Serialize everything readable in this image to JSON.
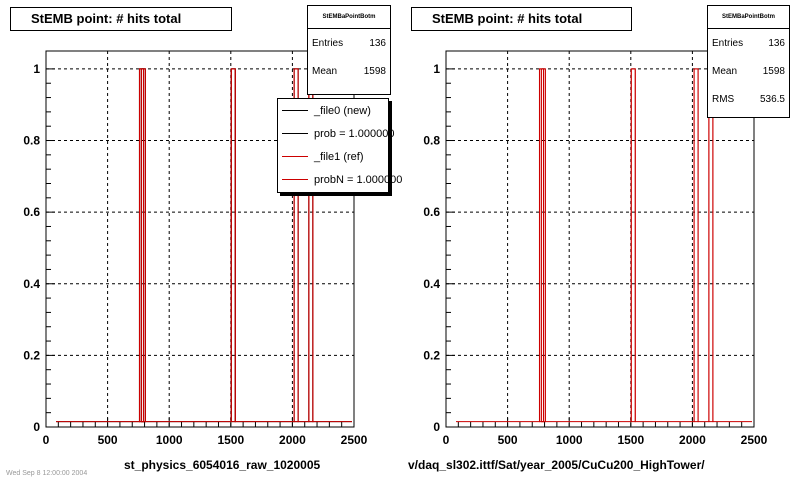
{
  "chart_data": [
    {
      "type": "histogram",
      "title": "StEMB point: # hits total",
      "xlabel": "st_physics_6054016_raw_1020005",
      "ylabel": "",
      "xlim": [
        0,
        2500
      ],
      "ylim": [
        0,
        1.05
      ],
      "x_ticks": [
        0,
        500,
        1000,
        1500,
        2000,
        2500
      ],
      "y_ticks": [
        0,
        0.2,
        0.4,
        0.6,
        0.8,
        1
      ],
      "grid": true,
      "series": [
        {
          "name": "_file0 (new)",
          "color": "#000000",
          "peaks": [
            775,
            790,
            1520,
            2030,
            2150
          ]
        },
        {
          "name": "_file1 (ref)",
          "color": "#cc0000",
          "peaks": [
            775,
            790,
            1520,
            2030,
            2150
          ]
        }
      ],
      "stats": {
        "name": "StEMBaPointBotm",
        "entries": "136",
        "mean": "1598"
      },
      "legend": [
        "_file0 (new)",
        "prob = 1.000000",
        "_file1 (ref)",
        "probN = 1.000000"
      ],
      "legend_position": "top-right"
    },
    {
      "type": "histogram",
      "title": "StEMB point: # hits total",
      "xlabel": "v/daq_sl302.ittf/Sat/year_2005/CuCu200_HighTower/",
      "ylabel": "",
      "xlim": [
        0,
        2500
      ],
      "ylim": [
        0,
        1.05
      ],
      "x_ticks": [
        0,
        500,
        1000,
        1500,
        2000,
        2500
      ],
      "y_ticks": [
        0,
        0.2,
        0.4,
        0.6,
        0.8,
        1
      ],
      "grid": true,
      "series": [
        {
          "name": "_file1 (ref)",
          "color": "#cc0000",
          "peaks": [
            775,
            790,
            1520,
            2030,
            2150
          ]
        }
      ],
      "stats": {
        "name": "StEMBaPointBotm",
        "entries": "136",
        "mean": "1598",
        "rms": "536.5"
      }
    }
  ],
  "labels": {
    "entries": "Entries",
    "mean": "Mean",
    "rms": "RMS"
  },
  "footer": "Wed Sep  8 12:00:00 2004"
}
